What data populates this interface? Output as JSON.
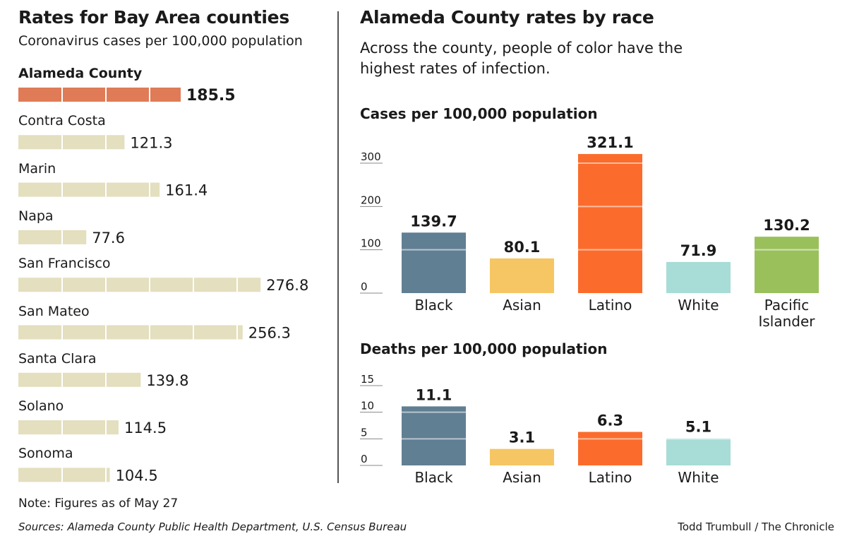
{
  "left_panel": {
    "title": "Rates for Bay Area counties",
    "subtitle": "Coronavirus cases per 100,000 population"
  },
  "right_panel": {
    "title": "Alameda County rates by race",
    "description": "Across the county, people of color have the highest rates of infection."
  },
  "footer": {
    "note": "Note: Figures as of May 27",
    "sources": "Sources: Alameda County Public Health Department, U.S. Census Bureau",
    "credit": "Todd Trumbull / The Chronicle"
  },
  "colors": {
    "highlight_bar": "#e07b57",
    "county_bar": "#e3dfbf",
    "Black": "#617f93",
    "Asian": "#f5c663",
    "Latino": "#fb6c2c",
    "White": "#a8dcd6",
    "Pacific Islander": "#9ac05c"
  },
  "chart_data": [
    {
      "type": "bar",
      "orientation": "horizontal",
      "title": "Rates for Bay Area counties",
      "subtitle": "Coronavirus cases per 100,000 population",
      "categories": [
        "Alameda County",
        "Contra Costa",
        "Marin",
        "Napa",
        "San Francisco",
        "San Mateo",
        "Santa Clara",
        "Solano",
        "Sonoma"
      ],
      "values": [
        185.5,
        121.3,
        161.4,
        77.6,
        276.8,
        256.3,
        139.8,
        114.5,
        104.5
      ],
      "value_labels": [
        "185.5",
        "121.3",
        "161.4",
        "77.6",
        "276.8",
        "256.3",
        "139.8",
        "114.5",
        "104.5"
      ],
      "highlight": "Alameda County",
      "xlim": [
        0,
        300
      ],
      "grid": false
    },
    {
      "type": "bar",
      "title": "Cases per 100,000 population",
      "categories": [
        "Black",
        "Asian",
        "Latino",
        "White",
        "Pacific Islander"
      ],
      "category_labels": [
        [
          "Black"
        ],
        [
          "Asian"
        ],
        [
          "Latino"
        ],
        [
          "White"
        ],
        [
          "Pacific",
          "Islander"
        ]
      ],
      "values": [
        139.7,
        80.1,
        321.1,
        71.9,
        130.2
      ],
      "value_labels": [
        "139.7",
        "80.1",
        "321.1",
        "71.9",
        "130.2"
      ],
      "ylim": [
        0,
        300
      ],
      "yticks": [
        0,
        100,
        200,
        300
      ],
      "ytick_labels": [
        "0",
        "100",
        "200",
        "300"
      ],
      "grid": true
    },
    {
      "type": "bar",
      "title": "Deaths per 100,000 population",
      "categories": [
        "Black",
        "Asian",
        "Latino",
        "White"
      ],
      "category_labels": [
        [
          "Black"
        ],
        [
          "Asian"
        ],
        [
          "Latino"
        ],
        [
          "White"
        ]
      ],
      "values": [
        11.1,
        3.1,
        6.3,
        5.1
      ],
      "value_labels": [
        "11.1",
        "3.1",
        "6.3",
        "5.1"
      ],
      "ylim": [
        0,
        15
      ],
      "yticks": [
        0,
        5,
        10,
        15
      ],
      "ytick_labels": [
        "0",
        "5",
        "10",
        "15"
      ],
      "grid": true
    }
  ]
}
